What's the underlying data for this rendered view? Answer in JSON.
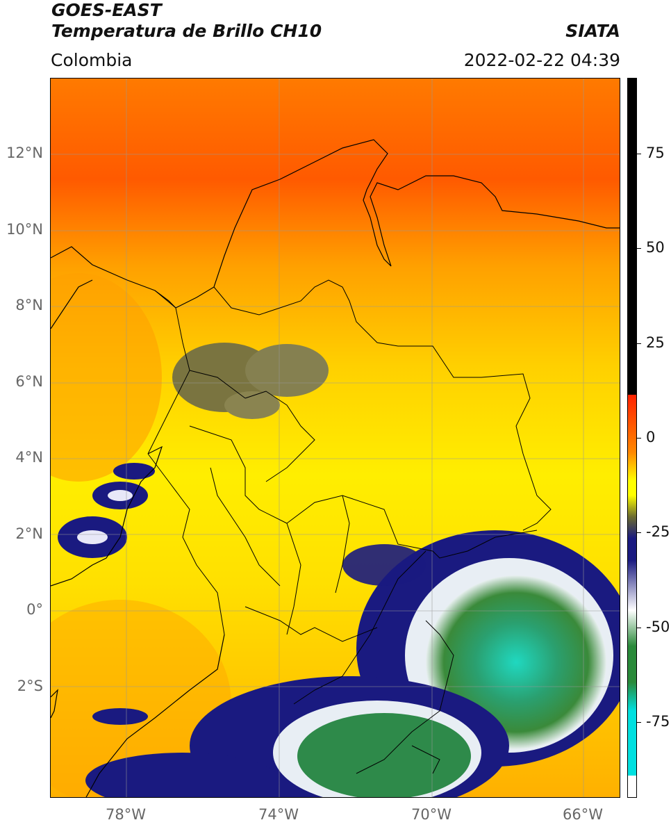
{
  "header": {
    "title_line1": "GOES-EAST",
    "title_line2": "Temperatura de Brillo CH10",
    "brand": "SIATA",
    "region": "Colombia",
    "datetime": "2022-02-22 04:39"
  },
  "axes": {
    "lat_labels": [
      "12°N",
      "10°N",
      "8°N",
      "6°N",
      "4°N",
      "2°N",
      "0°",
      "2°S"
    ],
    "lon_labels": [
      "78°W",
      "74°W",
      "70°W",
      "66°W"
    ]
  },
  "colorbar": {
    "tick_labels": [
      "75",
      "50",
      "25",
      "0",
      "-25",
      "-50",
      "-75"
    ],
    "tick_values": [
      75,
      50,
      25,
      0,
      -25,
      -50,
      -75
    ],
    "range": [
      -95,
      95
    ],
    "colors": {
      "black": "#000000",
      "red": "#ff2200",
      "orange": "#ff8800",
      "yellow": "#ffff00",
      "olive": "#6b6b30",
      "navy": "#1a1a80",
      "white": "#ffffff",
      "green": "#2a8a3a",
      "cyan": "#00e0e0"
    }
  }
}
